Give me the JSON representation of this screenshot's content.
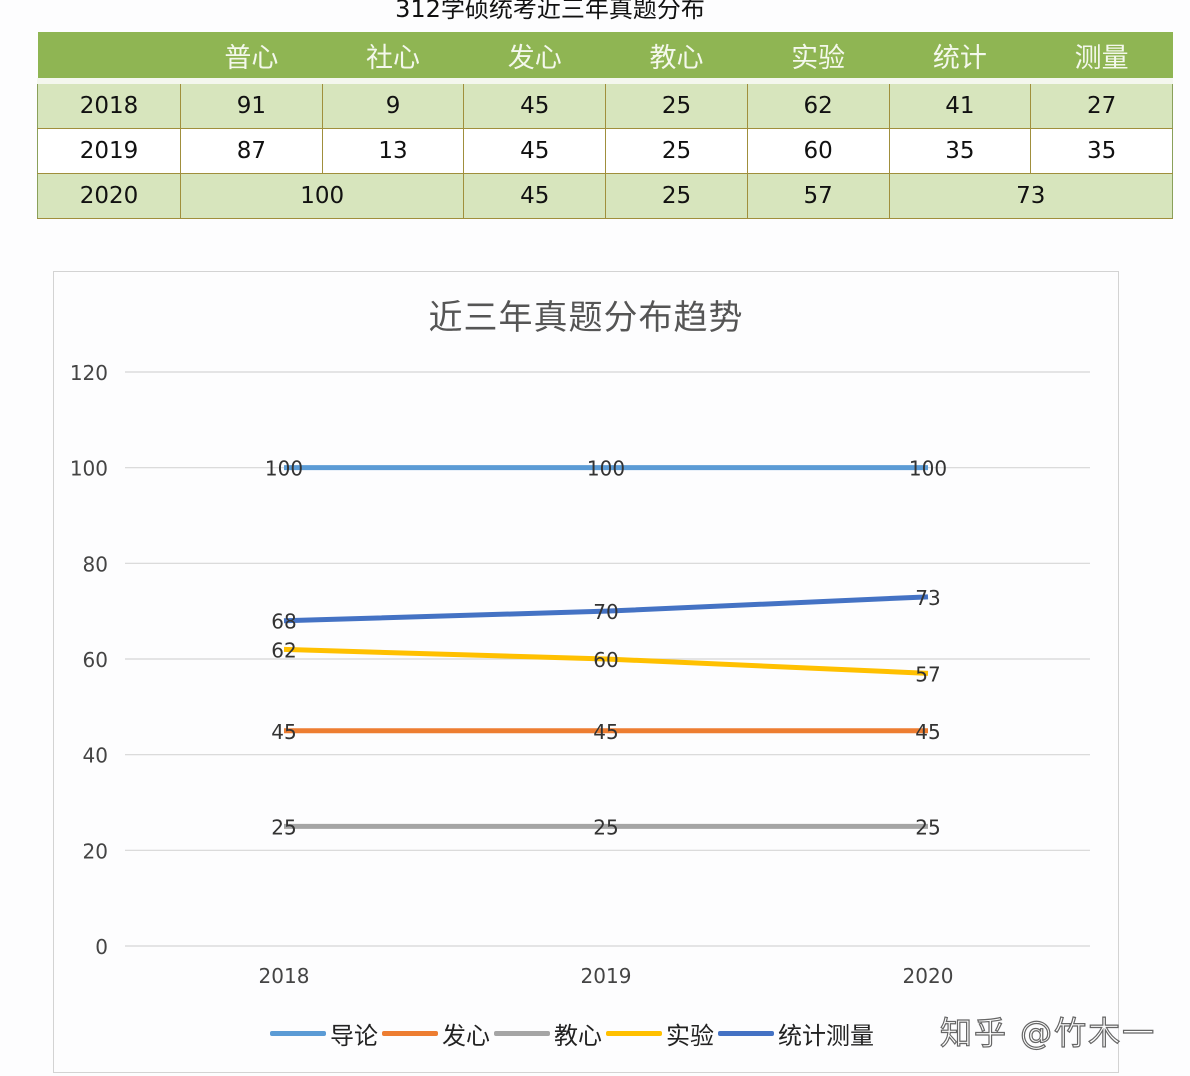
{
  "header": {
    "title": "312学硕统考近三年真题分布"
  },
  "table": {
    "columns": [
      "",
      "普心",
      "社心",
      "发心",
      "教心",
      "实验",
      "统计",
      "测量"
    ],
    "rows": [
      {
        "year": "2018",
        "cells": [
          "91",
          "9",
          "45",
          "25",
          "62",
          "41",
          "27"
        ]
      },
      {
        "year": "2019",
        "cells": [
          "87",
          "13",
          "45",
          "25",
          "60",
          "35",
          "35"
        ]
      },
      {
        "year": "2020",
        "cells": [
          "100",
          "45",
          "25",
          "57",
          "73"
        ]
      }
    ]
  },
  "chart_data": {
    "type": "line",
    "title": "近三年真题分布趋势",
    "categories": [
      "2018",
      "2019",
      "2020"
    ],
    "xlabel": "",
    "ylabel": "",
    "ylim": [
      0,
      120
    ],
    "yticks": [
      "0",
      "20",
      "40",
      "60",
      "80",
      "100",
      "120"
    ],
    "grid": true,
    "legend_position": "bottom",
    "series": [
      {
        "name": "导论",
        "color": "#5b9bd5",
        "values": [
          100,
          100,
          100
        ]
      },
      {
        "name": "发心",
        "color": "#ed7d31",
        "values": [
          45,
          45,
          45
        ]
      },
      {
        "name": "教心",
        "color": "#a5a5a5",
        "values": [
          25,
          25,
          25
        ]
      },
      {
        "name": "实验",
        "color": "#ffc000",
        "values": [
          62,
          60,
          57
        ]
      },
      {
        "name": "统计测量",
        "color": "#4472c4",
        "values": [
          68,
          70,
          73
        ]
      }
    ]
  },
  "watermark": "知乎 @竹木一"
}
